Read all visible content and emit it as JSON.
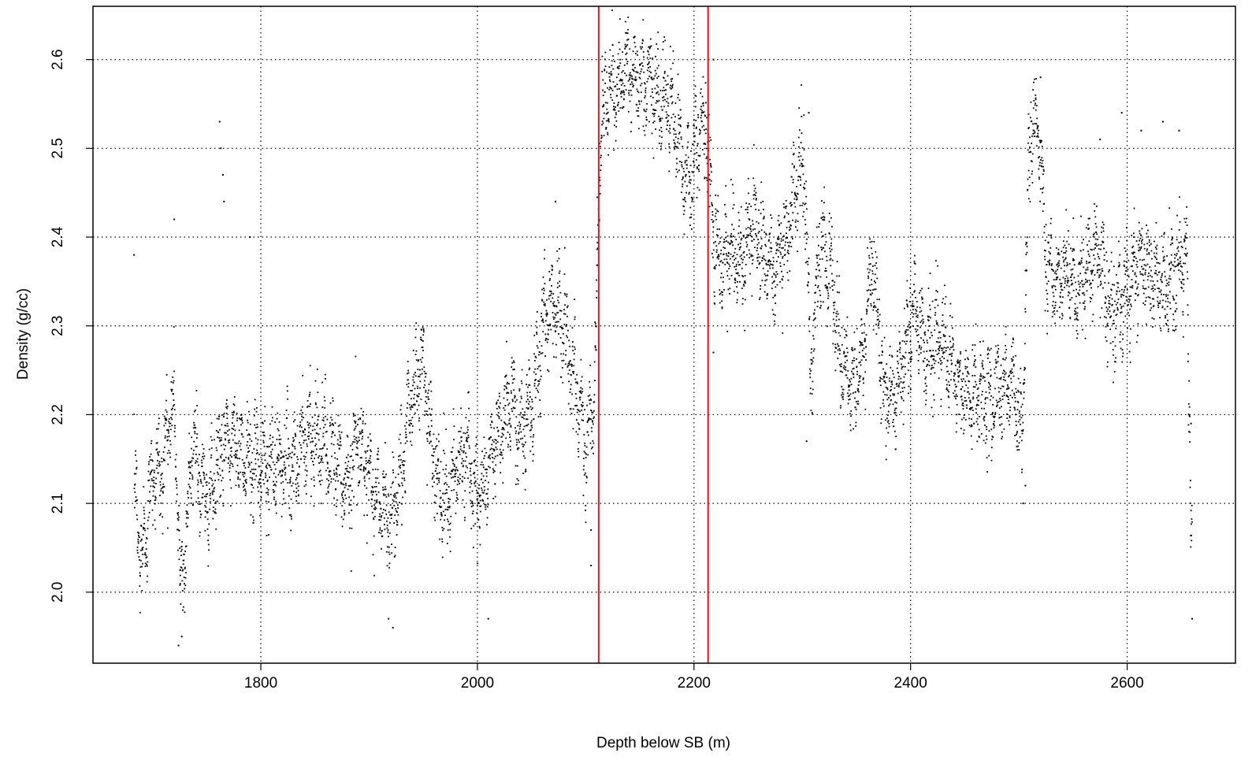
{
  "chart_data": {
    "type": "scatter",
    "title": "",
    "xlabel": "Depth below SB (m)",
    "ylabel": "Density (g/cc)",
    "xlim": [
      1645,
      2700
    ],
    "ylim": [
      1.92,
      2.66
    ],
    "xticks": [
      1800,
      2000,
      2200,
      2400,
      2600
    ],
    "yticks": [
      2.0,
      2.1,
      2.2,
      2.3,
      2.4,
      2.5,
      2.6
    ],
    "xtick_labels": [
      "1800",
      "2000",
      "2200",
      "2400",
      "2600"
    ],
    "ytick_labels": [
      "2.0",
      "2.1",
      "2.2",
      "2.3",
      "2.4",
      "2.5",
      "2.6"
    ],
    "grid": true,
    "point_color": "#000000",
    "vlines": [
      {
        "x": 2112,
        "color": "#e8141c"
      },
      {
        "x": 2213,
        "color": "#e8141c"
      }
    ],
    "series_profile": [
      [
        1683,
        2.12
      ],
      [
        1690,
        2.03
      ],
      [
        1695,
        2.08
      ],
      [
        1700,
        2.14
      ],
      [
        1708,
        2.13
      ],
      [
        1715,
        2.19
      ],
      [
        1720,
        2.21
      ],
      [
        1726,
        2.0
      ],
      [
        1732,
        2.08
      ],
      [
        1738,
        2.18
      ],
      [
        1745,
        2.12
      ],
      [
        1752,
        2.1
      ],
      [
        1758,
        2.13
      ],
      [
        1765,
        2.16
      ],
      [
        1772,
        2.18
      ],
      [
        1780,
        2.16
      ],
      [
        1790,
        2.15
      ],
      [
        1800,
        2.14
      ],
      [
        1810,
        2.14
      ],
      [
        1820,
        2.15
      ],
      [
        1830,
        2.14
      ],
      [
        1840,
        2.17
      ],
      [
        1850,
        2.18
      ],
      [
        1860,
        2.16
      ],
      [
        1870,
        2.15
      ],
      [
        1880,
        2.12
      ],
      [
        1890,
        2.18
      ],
      [
        1900,
        2.12
      ],
      [
        1910,
        2.1
      ],
      [
        1920,
        2.08
      ],
      [
        1930,
        2.14
      ],
      [
        1940,
        2.22
      ],
      [
        1950,
        2.26
      ],
      [
        1960,
        2.14
      ],
      [
        1970,
        2.1
      ],
      [
        1980,
        2.14
      ],
      [
        1990,
        2.16
      ],
      [
        2000,
        2.1
      ],
      [
        2010,
        2.14
      ],
      [
        2020,
        2.18
      ],
      [
        2030,
        2.22
      ],
      [
        2040,
        2.18
      ],
      [
        2050,
        2.21
      ],
      [
        2060,
        2.3
      ],
      [
        2070,
        2.33
      ],
      [
        2080,
        2.3
      ],
      [
        2090,
        2.24
      ],
      [
        2100,
        2.17
      ],
      [
        2108,
        2.21
      ],
      [
        2114,
        2.53
      ],
      [
        2120,
        2.56
      ],
      [
        2130,
        2.57
      ],
      [
        2140,
        2.59
      ],
      [
        2150,
        2.58
      ],
      [
        2160,
        2.57
      ],
      [
        2170,
        2.56
      ],
      [
        2180,
        2.54
      ],
      [
        2190,
        2.48
      ],
      [
        2198,
        2.47
      ],
      [
        2206,
        2.53
      ],
      [
        2212,
        2.52
      ],
      [
        2218,
        2.4
      ],
      [
        2225,
        2.37
      ],
      [
        2235,
        2.39
      ],
      [
        2245,
        2.37
      ],
      [
        2255,
        2.42
      ],
      [
        2265,
        2.38
      ],
      [
        2275,
        2.36
      ],
      [
        2285,
        2.4
      ],
      [
        2295,
        2.46
      ],
      [
        2302,
        2.48
      ],
      [
        2308,
        2.24
      ],
      [
        2315,
        2.38
      ],
      [
        2325,
        2.38
      ],
      [
        2335,
        2.27
      ],
      [
        2345,
        2.23
      ],
      [
        2355,
        2.25
      ],
      [
        2365,
        2.38
      ],
      [
        2375,
        2.23
      ],
      [
        2385,
        2.22
      ],
      [
        2395,
        2.27
      ],
      [
        2405,
        2.32
      ],
      [
        2415,
        2.27
      ],
      [
        2425,
        2.29
      ],
      [
        2435,
        2.26
      ],
      [
        2445,
        2.23
      ],
      [
        2455,
        2.22
      ],
      [
        2465,
        2.23
      ],
      [
        2475,
        2.21
      ],
      [
        2485,
        2.23
      ],
      [
        2495,
        2.24
      ],
      [
        2503,
        2.17
      ],
      [
        2510,
        2.51
      ],
      [
        2518,
        2.54
      ],
      [
        2525,
        2.38
      ],
      [
        2535,
        2.34
      ],
      [
        2545,
        2.36
      ],
      [
        2555,
        2.34
      ],
      [
        2565,
        2.37
      ],
      [
        2575,
        2.38
      ],
      [
        2585,
        2.31
      ],
      [
        2595,
        2.32
      ],
      [
        2605,
        2.36
      ],
      [
        2615,
        2.37
      ],
      [
        2625,
        2.35
      ],
      [
        2635,
        2.34
      ],
      [
        2645,
        2.36
      ],
      [
        2655,
        2.38
      ],
      [
        2660,
        2.03
      ]
    ],
    "outliers": [
      [
        1683,
        2.38
      ],
      [
        1762,
        2.53
      ],
      [
        1763,
        2.5
      ],
      [
        1765,
        2.47
      ],
      [
        1766,
        2.44
      ],
      [
        1720,
        2.42
      ],
      [
        1727,
        1.95
      ],
      [
        1724,
        1.94
      ],
      [
        1790,
        2.4
      ],
      [
        1922,
        1.96
      ],
      [
        1918,
        1.97
      ],
      [
        2010,
        1.97
      ],
      [
        2072,
        2.44
      ],
      [
        2137,
        2.63
      ],
      [
        2218,
        2.6
      ],
      [
        2660,
        1.97
      ],
      [
        2659,
        2.19
      ],
      [
        2504,
        2.1
      ],
      [
        2506,
        2.12
      ],
      [
        2304,
        2.17
      ],
      [
        2306,
        2.54
      ],
      [
        2105,
        2.03
      ],
      [
        2105,
        2.07
      ],
      [
        2218,
        2.27
      ],
      [
        2595,
        2.54
      ],
      [
        2613,
        2.52
      ],
      [
        2648,
        2.52
      ],
      [
        2633,
        2.53
      ],
      [
        2575,
        2.51
      ],
      [
        2520,
        2.58
      ]
    ]
  }
}
